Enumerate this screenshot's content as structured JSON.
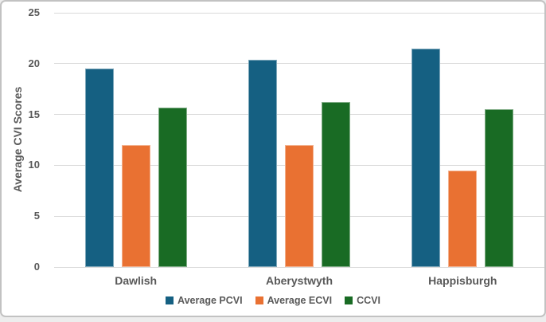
{
  "card": {
    "background": "#FFFFFF",
    "border_color": "#C2C2C2"
  },
  "chart_data": {
    "type": "bar",
    "title": "",
    "xlabel": "",
    "ylabel": "Average CVI Scores",
    "categories": [
      "Dawlish",
      "Aberystwyth",
      "Happisburgh"
    ],
    "series": [
      {
        "name": "Average PCVI",
        "color": "#156082",
        "values": [
          19.5,
          20.4,
          21.5
        ]
      },
      {
        "name": "Average ECVI",
        "color": "#E97132",
        "values": [
          12,
          12,
          9.5
        ]
      },
      {
        "name": "CCVI",
        "color": "#196B24",
        "values": [
          15.7,
          16.2,
          15.5
        ]
      }
    ],
    "ylim": [
      0,
      25
    ],
    "yticks": [
      0,
      5,
      10,
      15,
      20,
      25
    ],
    "grid": true,
    "legend_position": "bottom",
    "axis_text_color": "#595959",
    "gridline_color": "#D9D9D9"
  }
}
